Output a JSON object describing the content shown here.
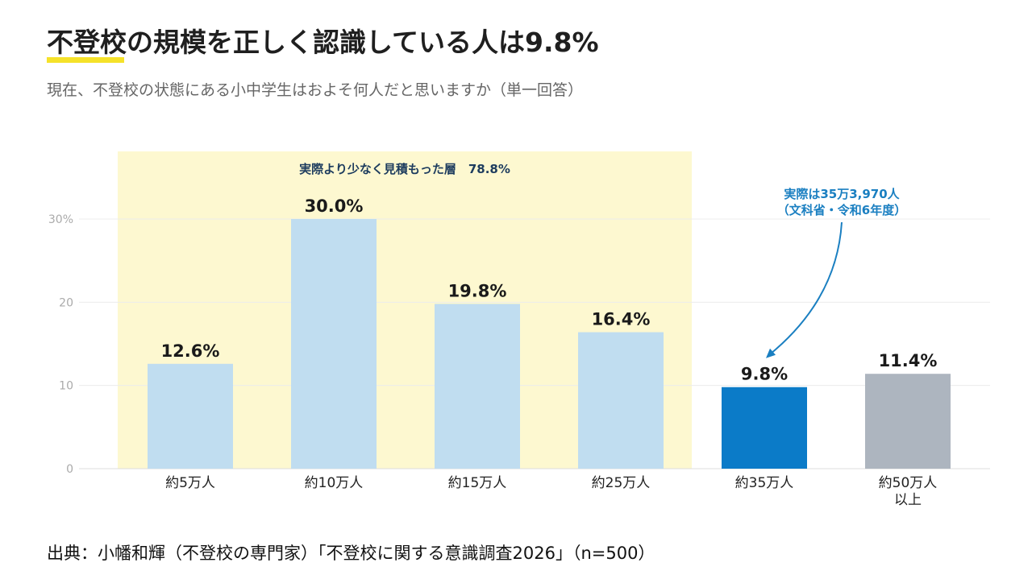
{
  "header": {
    "title": "不登校の規模を正しく認識している人は9.8%",
    "subtitle": "現在、不登校の状態にある小中学生はおよそ何人だと思いますか（単一回答）"
  },
  "source": "出典：小幡和輝（不登校の専門家）「不登校に関する意識調査2026」（n=500）",
  "colors": {
    "accent_underline": "#f5e22a",
    "highlight_band": "#fdf8d0",
    "bar_default": "#c0ddf0",
    "bar_correct": "#0b7bc8",
    "bar_other": "#adb5bf",
    "annotation": "#1a7fc1"
  },
  "chart_data": {
    "type": "bar",
    "categories": [
      "約5万人",
      "約10万人",
      "約15万人",
      "約25万人",
      "約35万人",
      "約50万人\n以上"
    ],
    "values": [
      12.6,
      30.0,
      19.8,
      16.4,
      9.8,
      11.4
    ],
    "value_labels": [
      "12.6%",
      "30.0%",
      "19.8%",
      "16.4%",
      "9.8%",
      "11.4%"
    ],
    "y_ticks": [
      {
        "value": 0,
        "label": "0"
      },
      {
        "value": 10,
        "label": "10"
      },
      {
        "value": 20,
        "label": "20"
      },
      {
        "value": 30,
        "label": "30%"
      }
    ],
    "ylim": [
      0,
      30
    ],
    "grid": true,
    "highlight_region": {
      "label": "実際より少なく見積もった層　78.8%",
      "categories": [
        "約5万人",
        "約10万人",
        "約15万人",
        "約25万人"
      ]
    },
    "annotation": {
      "lines": [
        "実際は35万3,970人",
        "（文科省・令和6年度）"
      ],
      "target_category": "約35万人"
    }
  }
}
